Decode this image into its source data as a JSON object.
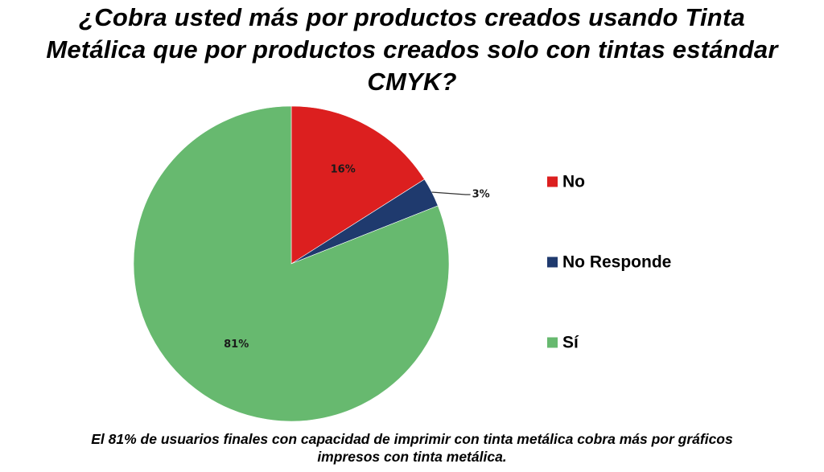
{
  "title_lines": [
    "¿Cobra usted más por productos creados usando Tinta",
    "Metálica que por productos creados solo con tintas estándar",
    "CMYK?"
  ],
  "caption_lines": [
    "El 81% de usuarios finales con capacidad de imprimir con tinta metálica cobra más por gráficos",
    "impresos con tinta metálica."
  ],
  "chart_data": {
    "type": "pie",
    "title": "¿Cobra usted más por productos creados usando Tinta Metálica que por productos creados solo con tintas estándar CMYK?",
    "legend_position": "right",
    "slices": [
      {
        "name": "No",
        "value": 16,
        "label": "16%",
        "color": "#dc1f1f"
      },
      {
        "name": "No Responde",
        "value": 3,
        "label": "3%",
        "color": "#1f3a6e"
      },
      {
        "name": "Sí",
        "value": 81,
        "label": "81%",
        "color": "#67b96f"
      }
    ]
  }
}
